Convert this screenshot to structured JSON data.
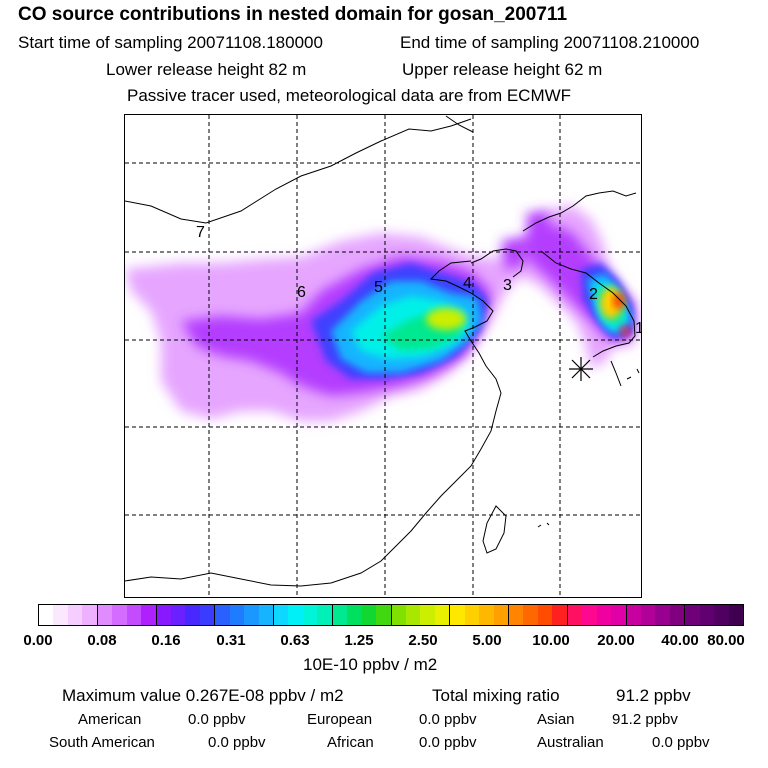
{
  "header": {
    "title": "CO  source contributions in nested domain for gosan_200711",
    "start_label": "Start time of sampling 20071108.180000",
    "end_label": "End time of sampling 20071108.210000",
    "lower_label": "Lower release height   82 m",
    "upper_label": "Upper release height   62 m",
    "note": "Passive tracer used, meteorological data are from ECMWF"
  },
  "map": {
    "region_labels": [
      "1",
      "2",
      "3",
      "4",
      "5",
      "6",
      "7"
    ],
    "marker": "receptor-star"
  },
  "colorbar": {
    "ticks": [
      "0.00",
      "0.08",
      "0.16",
      "0.31",
      "0.63",
      "1.25",
      "2.50",
      "5.00",
      "10.00",
      "20.00",
      "40.00",
      "80.00"
    ],
    "unit": "10E-10 ppbv / m2",
    "colors": [
      "#ffffff",
      "#fbe8ff",
      "#f5cdff",
      "#eeb1ff",
      "#e08cff",
      "#d36cff",
      "#c44cff",
      "#b020ff",
      "#8a18ff",
      "#6a20ff",
      "#4828ff",
      "#3a3cff",
      "#2a60ff",
      "#1f7cff",
      "#1a98ff",
      "#16b4ff",
      "#0ed8ff",
      "#00f0f8",
      "#00f4d8",
      "#00f0b8",
      "#00e890",
      "#00e060",
      "#10d830",
      "#40d810",
      "#80e000",
      "#a8e800",
      "#ccee00",
      "#e8f000",
      "#ffe800",
      "#ffd000",
      "#ffb800",
      "#ffa000",
      "#ff8400",
      "#ff6800",
      "#ff4c00",
      "#ff2020",
      "#ff1060",
      "#ff0890",
      "#f000a0",
      "#e000a8",
      "#c800a0",
      "#b00098",
      "#980090",
      "#800080",
      "#70007a",
      "#600070",
      "#500060",
      "#400050"
    ]
  },
  "stats": {
    "max_label": "Maximum value  0.267E-08 ppbv / m2",
    "total_label": "Total mixing ratio",
    "total_value": "91.2 ppbv",
    "american_label": "American",
    "american_value": "0.0 ppbv",
    "european_label": "European",
    "european_value": "0.0 ppbv",
    "asian_label": "Asian",
    "asian_value": "91.2 ppbv",
    "south_american_label": "South American",
    "south_american_value": "0.0 ppbv",
    "african_label": "African",
    "african_value": "0.0 ppbv",
    "australian_label": "Australian",
    "australian_value": "0.0 ppbv"
  }
}
